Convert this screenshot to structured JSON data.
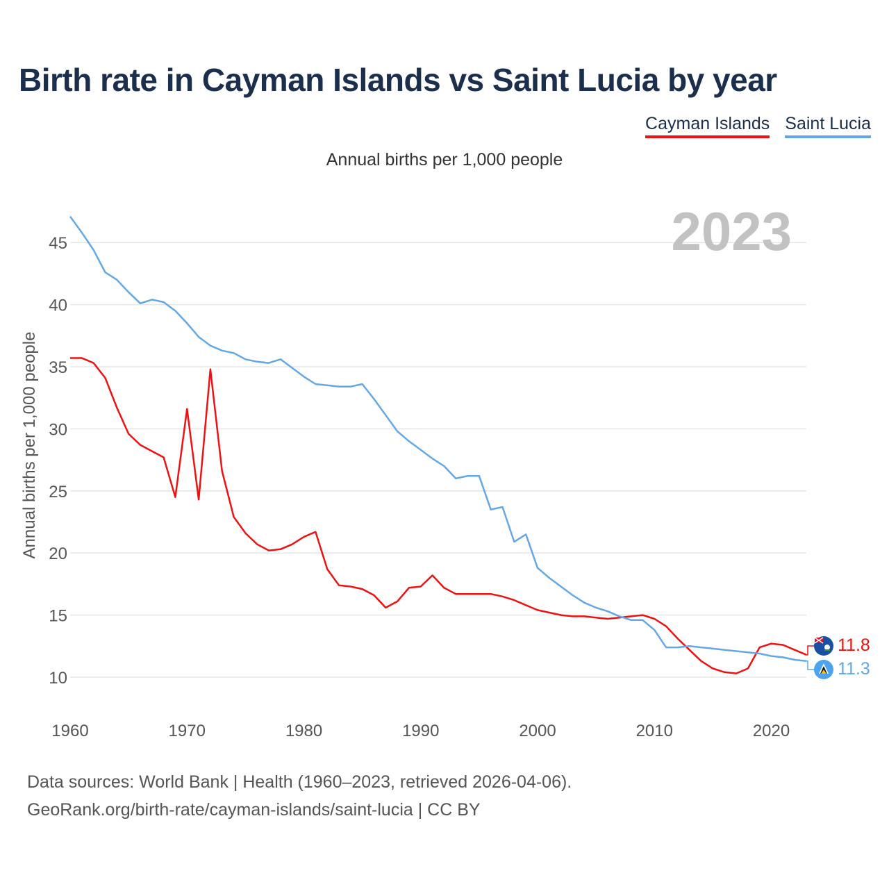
{
  "title": "Birth rate in Cayman Islands vs Saint Lucia by year",
  "legend": [
    {
      "name": "Cayman Islands",
      "color": "#ee1111"
    },
    {
      "name": "Saint Lucia",
      "color": "#63a8e6"
    }
  ],
  "subtitle": "Annual births per 1,000 people",
  "year_label": "2023",
  "footer": {
    "line1": "Data sources: World Bank | Health (1960–2023, retrieved 2026-04-06).",
    "line2": "GeoRank.org/birth-rate/cayman-islands/saint-lucia | CC BY"
  },
  "chart_data": {
    "type": "line",
    "title": "Birth rate in Cayman Islands vs Saint Lucia by year",
    "xlabel": "",
    "ylabel": "Annual births per 1,000 people",
    "xlim": [
      1960,
      2023
    ],
    "ylim": [
      7.5,
      47.5
    ],
    "yticks": [
      10,
      15,
      20,
      25,
      30,
      35,
      40,
      45
    ],
    "xticks": [
      1960,
      1970,
      1980,
      1990,
      2000,
      2010,
      2020
    ],
    "grid": true,
    "x_start": 1960,
    "series": [
      {
        "name": "Cayman Islands",
        "color": "#ee1111",
        "end_label": "11.8",
        "values": [
          35.7,
          35.7,
          35.3,
          34.1,
          31.7,
          29.6,
          28.7,
          28.2,
          27.7,
          24.5,
          31.6,
          24.3,
          34.8,
          26.6,
          22.9,
          21.6,
          20.7,
          20.2,
          20.3,
          20.7,
          21.3,
          21.7,
          18.7,
          17.4,
          17.3,
          17.1,
          16.6,
          15.6,
          16.1,
          17.2,
          17.3,
          18.2,
          17.2,
          16.7,
          16.7,
          16.7,
          16.7,
          16.5,
          16.2,
          15.8,
          15.4,
          15.2,
          15.0,
          14.9,
          14.9,
          14.8,
          14.7,
          14.8,
          14.9,
          15.0,
          14.7,
          14.1,
          13.1,
          12.2,
          11.3,
          10.7,
          10.4,
          10.3,
          10.7,
          12.4,
          12.7,
          12.6,
          12.2,
          11.8
        ]
      },
      {
        "name": "Saint Lucia",
        "color": "#63a8e6",
        "end_label": "11.3",
        "values": [
          47.1,
          45.8,
          44.4,
          42.6,
          42.0,
          41.0,
          40.1,
          40.4,
          40.2,
          39.5,
          38.5,
          37.4,
          36.7,
          36.3,
          36.1,
          35.6,
          35.4,
          35.3,
          35.6,
          34.9,
          34.2,
          33.6,
          33.5,
          33.4,
          33.4,
          33.6,
          32.4,
          31.1,
          29.8,
          29.0,
          28.3,
          27.6,
          27.0,
          26.0,
          26.2,
          26.2,
          23.5,
          23.7,
          20.9,
          21.5,
          18.8,
          18.0,
          17.3,
          16.6,
          16.0,
          15.6,
          15.3,
          14.9,
          14.6,
          14.6,
          13.8,
          12.4,
          12.4,
          12.5,
          12.4,
          12.3,
          12.2,
          12.1,
          12.0,
          11.9,
          11.7,
          11.6,
          11.4,
          11.3
        ]
      }
    ]
  }
}
